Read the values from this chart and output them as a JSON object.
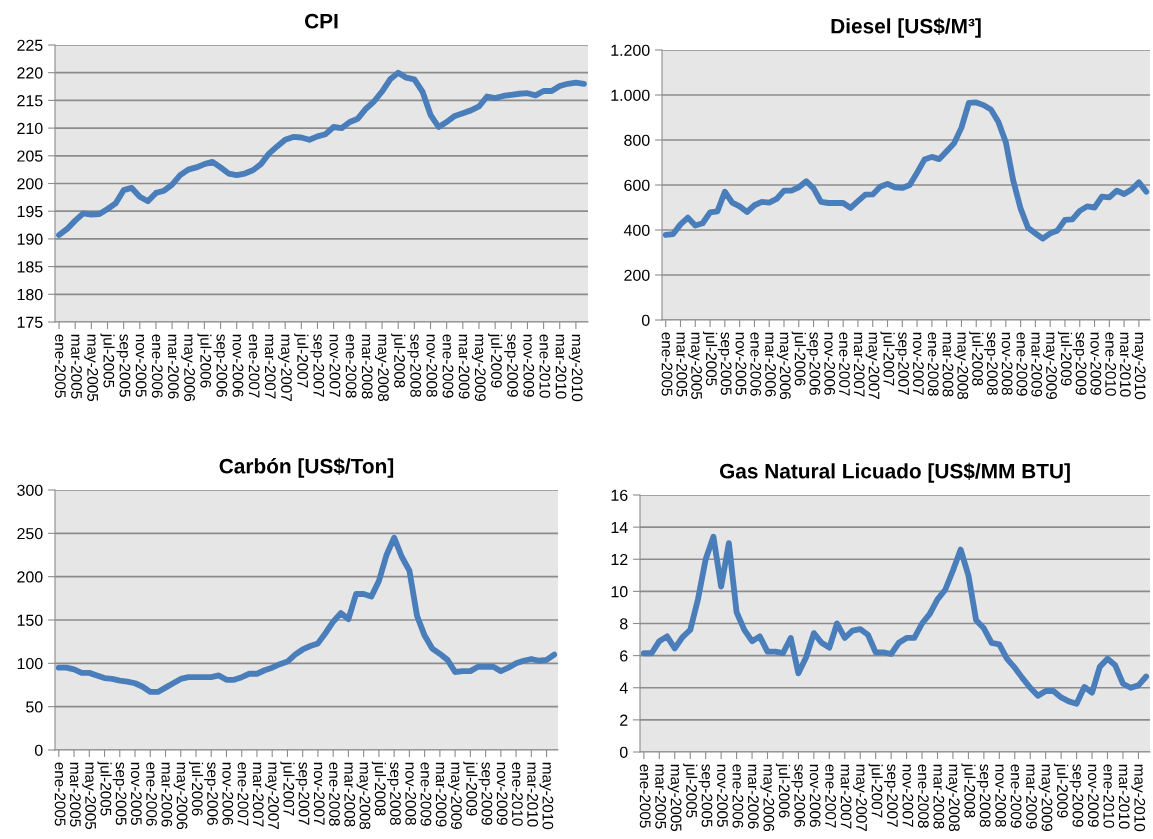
{
  "chart_data": [
    {
      "type": "line",
      "title": "CPI",
      "categories": [
        "ene-2005",
        null,
        "mar-2005",
        null,
        "may-2005",
        null,
        "jul-2005",
        null,
        "sep-2005",
        null,
        "nov-2005",
        null,
        "ene-2006",
        null,
        "mar-2006",
        null,
        "may-2006",
        null,
        "jul-2006",
        null,
        "sep-2006",
        null,
        "nov-2006",
        null,
        "ene-2007",
        null,
        "mar-2007",
        null,
        "may-2007",
        null,
        "jul-2007",
        null,
        "sep-2007",
        null,
        "nov-2007",
        null,
        "ene-2008",
        null,
        "mar-2008",
        null,
        "may-2008",
        null,
        "jul-2008",
        null,
        "sep-2008",
        null,
        "nov-2008",
        null,
        "ene-2009",
        null,
        "mar-2009",
        null,
        "may-2009",
        null,
        "jul-2009",
        null,
        "sep-2009",
        null,
        "nov-2009",
        null,
        "ene-2010",
        null,
        "mar-2010",
        null,
        "may-2010",
        null
      ],
      "series": [
        {
          "color": "#4a7ebb",
          "values": [
            190.7,
            191.8,
            193.3,
            194.6,
            194.4,
            194.5,
            195.4,
            196.4,
            198.8,
            199.2,
            197.6,
            196.8,
            198.3,
            198.7,
            199.8,
            201.5,
            202.5,
            202.9,
            203.5,
            203.9,
            202.9,
            201.8,
            201.5,
            201.8,
            202.4,
            203.5,
            205.4,
            206.7,
            207.9,
            208.4,
            208.3,
            207.9,
            208.5,
            208.9,
            210.2,
            210.0,
            211.1,
            211.7,
            213.5,
            214.8,
            216.6,
            218.8,
            220.0,
            219.1,
            218.8,
            216.6,
            212.4,
            210.2,
            211.1,
            212.2,
            212.7,
            213.2,
            213.9,
            215.7,
            215.4,
            215.8,
            216.0,
            216.2,
            216.3,
            215.9,
            216.7,
            216.7,
            217.6,
            218.0,
            218.2,
            218.0
          ]
        }
      ],
      "ylim": [
        175,
        225
      ],
      "yticks": [
        175,
        180,
        185,
        190,
        195,
        200,
        205,
        210,
        215,
        220,
        225
      ],
      "grid": "y"
    },
    {
      "type": "line",
      "title": "Diesel [US$/M³]",
      "categories": [
        "ene-2005",
        null,
        "mar-2005",
        null,
        "may-2005",
        null,
        "jul-2005",
        null,
        "sep-2005",
        null,
        "nov-2005",
        null,
        "ene-2006",
        null,
        "mar-2006",
        null,
        "may-2006",
        null,
        "jul-2006",
        null,
        "sep-2006",
        null,
        "nov-2006",
        null,
        "ene-2007",
        null,
        "mar-2007",
        null,
        "may-2007",
        null,
        "jul-2007",
        null,
        "sep-2007",
        null,
        "nov-2007",
        null,
        "ene-2008",
        null,
        "mar-2008",
        null,
        "may-2008",
        null,
        "jul-2008",
        null,
        "sep-2008",
        null,
        "nov-2008",
        null,
        "ene-2009",
        null,
        "mar-2009",
        null,
        "may-2009",
        null,
        "jul-2009",
        null,
        "sep-2009",
        null,
        "nov-2009",
        null,
        "ene-2010",
        null,
        "mar-2010",
        null,
        "may-2010",
        null
      ],
      "series": [
        {
          "color": "#4a7ebb",
          "values": [
            378,
            382,
            425,
            455,
            420,
            430,
            478,
            483,
            570,
            522,
            505,
            480,
            510,
            525,
            522,
            538,
            575,
            575,
            590,
            617,
            585,
            525,
            520,
            520,
            520,
            498,
            528,
            557,
            558,
            592,
            605,
            590,
            587,
            600,
            655,
            713,
            725,
            715,
            750,
            785,
            855,
            965,
            967,
            955,
            935,
            880,
            790,
            620,
            495,
            410,
            385,
            362,
            385,
            398,
            445,
            447,
            485,
            505,
            500,
            548,
            545,
            575,
            560,
            580,
            612,
            570
          ]
        }
      ],
      "ylim": [
        0,
        1200
      ],
      "yticks": [
        0,
        200,
        400,
        600,
        800,
        {
          "value": 1000,
          "label": "1.000"
        },
        {
          "value": 1200,
          "label": "1.200"
        }
      ],
      "grid": "y"
    },
    {
      "type": "line",
      "title": "Carbón [US$/Ton]",
      "categories": [
        "ene-2005",
        null,
        "mar-2005",
        null,
        "may-2005",
        null,
        "jul-2005",
        null,
        "sep-2005",
        null,
        "nov-2005",
        null,
        "ene-2006",
        null,
        "mar-2006",
        null,
        "may-2006",
        null,
        "jul-2006",
        null,
        "sep-2006",
        null,
        "nov-2006",
        null,
        "ene-2007",
        null,
        "mar-2007",
        null,
        "may-2007",
        null,
        "jul-2007",
        null,
        "sep-2007",
        null,
        "nov-2007",
        null,
        "ene-2008",
        null,
        "mar-2008",
        null,
        "may-2008",
        null,
        "jul-2008",
        null,
        "sep-2008",
        null,
        "nov-2008",
        null,
        "ene-2009",
        null,
        "mar-2009",
        null,
        "may-2009",
        null,
        "jul-2009",
        null,
        "sep-2009",
        null,
        "nov-2009",
        null,
        "ene-2010",
        null,
        "mar-2010",
        null,
        "may-2010",
        null
      ],
      "series": [
        {
          "color": "#4a7ebb",
          "values": [
            95,
            95,
            93,
            89,
            89,
            86,
            83,
            82,
            80,
            79,
            77,
            73,
            67,
            67,
            72,
            77,
            82,
            84,
            84,
            84,
            84,
            86,
            81,
            81,
            84,
            88,
            88,
            92,
            95,
            99,
            102,
            110,
            116,
            120,
            123,
            135,
            148,
            158,
            151,
            180,
            180,
            177,
            195,
            225,
            245,
            223,
            207,
            155,
            132,
            117,
            111,
            104,
            90,
            91,
            91,
            96,
            96,
            96,
            91,
            95,
            100,
            103,
            105,
            103,
            104,
            110
          ]
        }
      ],
      "ylim": [
        0,
        300
      ],
      "yticks": [
        0,
        50,
        100,
        150,
        200,
        250,
        300
      ],
      "grid": "y"
    },
    {
      "type": "line",
      "title": "Gas Natural Licuado [US$/MM BTU]",
      "categories": [
        "ene-2005",
        null,
        "mar-2005",
        null,
        "may-2005",
        null,
        "jul-2005",
        null,
        "sep-2005",
        null,
        "nov-2005",
        null,
        "ene-2006",
        null,
        "mar-2006",
        null,
        "may-2006",
        null,
        "jul-2006",
        null,
        "sep-2006",
        null,
        "nov-2006",
        null,
        "ene-2007",
        null,
        "mar-2007",
        null,
        "may-2007",
        null,
        "jul-2007",
        null,
        "sep-2007",
        null,
        "nov-2007",
        null,
        "ene-2008",
        null,
        "mar-2008",
        null,
        "may-2008",
        null,
        "jul-2008",
        null,
        "sep-2008",
        null,
        "nov-2008",
        null,
        "ene-2009",
        null,
        "mar-2009",
        null,
        "may-2009",
        null,
        "jul-2009",
        null,
        "sep-2009",
        null,
        "nov-2009",
        null,
        "ene-2010",
        null,
        "mar-2010",
        null,
        "may-2010",
        null
      ],
      "series": [
        {
          "color": "#4a7ebb",
          "values": [
            6.15,
            6.15,
            6.9,
            7.2,
            6.45,
            7.15,
            7.6,
            9.5,
            12.0,
            13.4,
            10.3,
            13.0,
            8.7,
            7.6,
            6.9,
            7.2,
            6.25,
            6.25,
            6.15,
            7.1,
            4.9,
            5.9,
            7.4,
            6.8,
            6.5,
            8.0,
            7.1,
            7.55,
            7.65,
            7.3,
            6.2,
            6.2,
            6.1,
            6.8,
            7.1,
            7.1,
            8.0,
            8.6,
            9.5,
            10.1,
            11.3,
            12.6,
            11.0,
            8.2,
            7.7,
            6.8,
            6.7,
            5.8,
            5.25,
            4.6,
            4.0,
            3.5,
            3.8,
            3.8,
            3.4,
            3.15,
            3.0,
            4.05,
            3.7,
            5.3,
            5.8,
            5.4,
            4.25,
            4.0,
            4.15,
            4.7
          ]
        }
      ],
      "ylim": [
        0,
        16
      ],
      "yticks": [
        0,
        2,
        4,
        6,
        8,
        10,
        12,
        14,
        16
      ],
      "grid": "y"
    }
  ]
}
